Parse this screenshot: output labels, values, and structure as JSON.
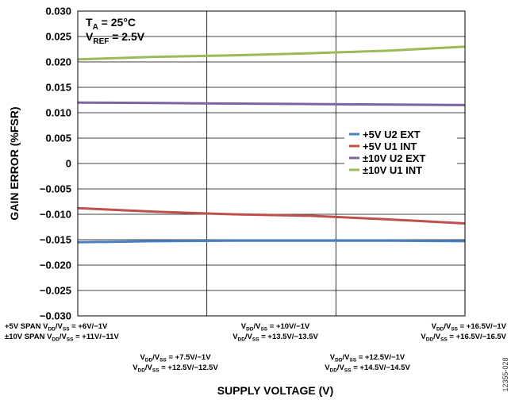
{
  "chart_data": {
    "type": "line",
    "xlabel": "SUPPLY VOLTAGE (V)",
    "ylabel": "GAIN ERROR (%FSR)",
    "ylim": [
      -0.03,
      0.03
    ],
    "yticks": [
      "0.030",
      "0.025",
      "0.020",
      "0.015",
      "0.010",
      "0.005",
      "0",
      "−0.005",
      "−0.010",
      "−0.015",
      "−0.020",
      "−0.025",
      "−0.030"
    ],
    "x": [
      0,
      1,
      2,
      3,
      4,
      5
    ],
    "grid": true,
    "legend_position": "middle-right",
    "annotation": {
      "line1": {
        "main": "T",
        "sub": "A",
        "rest": " = 25°C"
      },
      "line2": {
        "main": "V",
        "sub": "REF",
        "rest": " = 2.5V"
      }
    },
    "series": [
      {
        "name": "+5V U2 EXT",
        "color": "#4a7fc1",
        "values": [
          -0.0155,
          -0.0153,
          -0.0152,
          -0.0152,
          -0.0152,
          -0.0153
        ]
      },
      {
        "name": "+5V U1 INT",
        "color": "#c0504d",
        "values": [
          -0.0088,
          -0.0095,
          -0.01,
          -0.0103,
          -0.011,
          -0.0118
        ]
      },
      {
        "name": "±10V U2 EXT",
        "color": "#8064a2",
        "values": [
          0.012,
          0.0119,
          0.0118,
          0.0117,
          0.0116,
          0.0115
        ]
      },
      {
        "name": "±10V U1 INT",
        "color": "#9bbb59",
        "values": [
          0.0205,
          0.021,
          0.0213,
          0.0217,
          0.0222,
          0.023
        ]
      }
    ],
    "x_conditions": {
      "row1_left_a": "+5V SPAN V|DD|/V|SS| = +6V/−1V",
      "row1_left_b": "±10V SPAN V|DD|/V|SS| = +11V/−11V",
      "row1_mid_a": "V|DD|/V|SS| = +10V/−1V",
      "row1_mid_b": "V|DD|/V|SS| = +13.5V/−13.5V",
      "row1_right_a": "V|DD|/V|SS| = +16.5V/−1V",
      "row1_right_b": "V|DD|/V|SS| = +16.5V/−16.5V",
      "row2_left_a": "V|DD|/V|SS| = +7.5V/−1V",
      "row2_left_b": "V|DD|/V|SS| = +12.5V/−12.5V",
      "row2_right_a": "V|DD|/V|SS| = +12.5V/−1V",
      "row2_right_b": "V|DD|/V|SS| = +14.5V/−14.5V"
    }
  },
  "figure_id": "12355-028"
}
